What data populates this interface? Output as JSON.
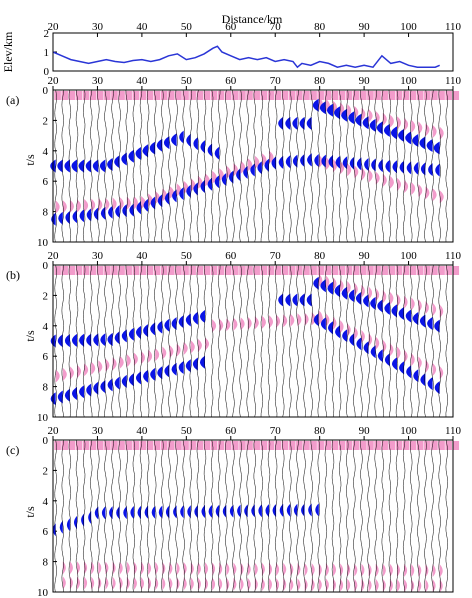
{
  "figure": {
    "colors": {
      "negative": "#0a14e6",
      "positive": "#f29ccb",
      "trace": "#000000",
      "elevation": "#2a35d6",
      "frame": "#000000"
    }
  },
  "chart_data": [
    {
      "type": "line",
      "panel": "elevation",
      "xlabel": "Distance/km",
      "ylabel": "Elev/km",
      "xlim": [
        20,
        110
      ],
      "ylim": [
        0,
        2
      ],
      "x_ticks": [
        20,
        30,
        40,
        50,
        60,
        70,
        80,
        90,
        100,
        110
      ],
      "y_ticks": [
        0,
        1,
        2
      ],
      "x_axis_position": "top",
      "series": [
        {
          "x": [
            20,
            22,
            24,
            26,
            28,
            30,
            32,
            34,
            36,
            38,
            40,
            42,
            44,
            46,
            48,
            50,
            52,
            54,
            56,
            57,
            58,
            60,
            62,
            64,
            66,
            68,
            70,
            72,
            74,
            75,
            76,
            78,
            80,
            82,
            84,
            86,
            88,
            90,
            92,
            94,
            96,
            98,
            100,
            102,
            104,
            106,
            107
          ],
          "y": [
            1.0,
            0.8,
            0.6,
            0.5,
            0.4,
            0.5,
            0.6,
            0.5,
            0.45,
            0.55,
            0.6,
            0.5,
            0.6,
            0.8,
            0.9,
            0.6,
            0.7,
            0.9,
            1.2,
            1.3,
            1.0,
            0.8,
            0.6,
            0.7,
            0.6,
            0.7,
            0.5,
            0.6,
            0.5,
            0.2,
            0.4,
            0.3,
            0.5,
            0.4,
            0.2,
            0.3,
            0.2,
            0.3,
            0.2,
            0.8,
            0.4,
            0.5,
            0.3,
            0.2,
            0.2,
            0.2,
            0.3
          ]
        }
      ]
    },
    {
      "type": "wiggle",
      "panel": "a",
      "label": "(a)",
      "xlim": [
        20,
        110
      ],
      "ylim": [
        0,
        10
      ],
      "ylabel": "t/s",
      "x_ticks": [
        20,
        30,
        40,
        50,
        60,
        70,
        80,
        90,
        100,
        110
      ],
      "y_ticks": [
        0,
        2,
        4,
        6,
        8,
        10
      ],
      "trace_spacing_km": 1.6,
      "grid": false
    },
    {
      "type": "wiggle",
      "panel": "b",
      "label": "(b)",
      "xlim": [
        20,
        110
      ],
      "ylim": [
        0,
        10
      ],
      "ylabel": "t/s",
      "x_ticks": [
        20,
        30,
        40,
        50,
        60,
        70,
        80,
        90,
        100,
        110
      ],
      "y_ticks": [
        0,
        2,
        4,
        6,
        8,
        10
      ],
      "trace_spacing_km": 1.6,
      "grid": false
    },
    {
      "type": "wiggle",
      "panel": "c",
      "label": "(c)",
      "xlim": [
        20,
        110
      ],
      "ylim": [
        0,
        10
      ],
      "ylabel": "t/s",
      "x_ticks": [
        20,
        30,
        40,
        50,
        60,
        70,
        80,
        90,
        100,
        110
      ],
      "y_ticks": [
        0,
        2,
        4,
        6,
        8,
        10
      ],
      "trace_spacing_km": 1.6,
      "grid": false
    }
  ]
}
